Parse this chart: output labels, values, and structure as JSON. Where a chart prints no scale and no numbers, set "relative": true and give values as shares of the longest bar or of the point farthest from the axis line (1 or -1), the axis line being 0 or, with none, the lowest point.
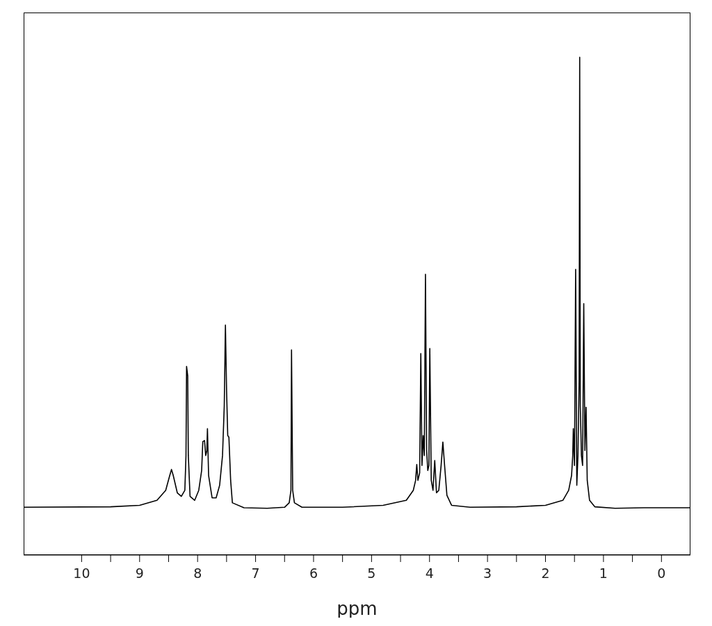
{
  "chart_data": {
    "type": "line",
    "xlabel": "ppm",
    "relative": true,
    "xlim": [
      11,
      -0.5
    ],
    "xticks": [
      0,
      {
        "value": 0.5,
        "label": null
      },
      1,
      {
        "value": 1.5,
        "label": null
      },
      2,
      {
        "value": 2.5,
        "label": null
      },
      3,
      {
        "value": 3.5,
        "label": null
      },
      4,
      {
        "value": 4.5,
        "label": null
      },
      5,
      {
        "value": 5.5,
        "label": null
      },
      6,
      {
        "value": 6.5,
        "label": null
      },
      7,
      {
        "value": 7.5,
        "label": null
      },
      8,
      {
        "value": 8.5,
        "label": null
      },
      9,
      {
        "value": 9.5,
        "label": null
      },
      10
    ],
    "x": [
      11.0,
      9.5,
      9.0,
      8.7,
      8.55,
      8.48,
      8.45,
      8.42,
      8.35,
      8.28,
      8.22,
      8.2,
      8.19,
      8.17,
      8.16,
      8.13,
      8.05,
      7.98,
      7.93,
      7.91,
      7.88,
      7.86,
      7.84,
      7.83,
      7.81,
      7.75,
      7.68,
      7.62,
      7.57,
      7.54,
      7.52,
      7.5,
      7.48,
      7.46,
      7.43,
      7.4,
      7.2,
      6.8,
      6.5,
      6.42,
      6.39,
      6.38,
      6.36,
      6.33,
      6.2,
      5.5,
      4.8,
      4.4,
      4.28,
      4.24,
      4.22,
      4.2,
      4.17,
      4.15,
      4.13,
      4.11,
      4.09,
      4.07,
      4.05,
      4.03,
      4.01,
      3.995,
      3.97,
      3.94,
      3.91,
      3.88,
      3.84,
      3.8,
      3.77,
      3.74,
      3.7,
      3.62,
      3.3,
      2.5,
      2.0,
      1.7,
      1.6,
      1.55,
      1.53,
      1.52,
      1.5,
      1.48,
      1.46,
      1.44,
      1.42,
      1.41,
      1.4,
      1.38,
      1.36,
      1.34,
      1.32,
      1.3,
      1.28,
      1.24,
      1.15,
      0.8,
      0.3,
      -0.5
    ],
    "series": [
      {
        "color": "#000000",
        "values": [
          0.096,
          0.097,
          0.1,
          0.11,
          0.13,
          0.16,
          0.172,
          0.16,
          0.125,
          0.118,
          0.13,
          0.2,
          0.379,
          0.36,
          0.2,
          0.118,
          0.11,
          0.13,
          0.17,
          0.228,
          0.23,
          0.2,
          0.21,
          0.254,
          0.16,
          0.115,
          0.115,
          0.14,
          0.2,
          0.3,
          0.462,
          0.33,
          0.24,
          0.237,
          0.15,
          0.105,
          0.095,
          0.094,
          0.096,
          0.105,
          0.13,
          0.412,
          0.13,
          0.105,
          0.096,
          0.096,
          0.1,
          0.11,
          0.13,
          0.15,
          0.182,
          0.15,
          0.165,
          0.405,
          0.18,
          0.24,
          0.2,
          0.564,
          0.21,
          0.17,
          0.18,
          0.415,
          0.15,
          0.13,
          0.19,
          0.125,
          0.13,
          0.18,
          0.227,
          0.18,
          0.12,
          0.1,
          0.096,
          0.097,
          0.1,
          0.11,
          0.13,
          0.16,
          0.2,
          0.254,
          0.18,
          0.574,
          0.14,
          0.2,
          0.35,
          1.0,
          0.3,
          0.2,
          0.18,
          0.505,
          0.21,
          0.297,
          0.15,
          0.11,
          0.097,
          0.094,
          0.095,
          0.095
        ]
      }
    ]
  }
}
